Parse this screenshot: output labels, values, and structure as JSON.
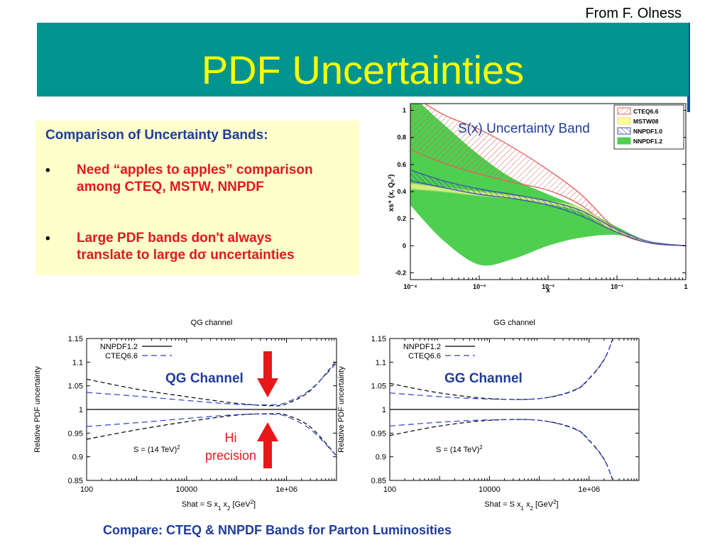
{
  "header": {
    "credit": "From F. Olness",
    "title": "PDF Uncertainties"
  },
  "comparison": {
    "heading": "Comparison of Uncertainty Bands:",
    "bullets": [
      {
        "line1": "Need “apples to apples” comparison",
        "line2": "among CTEQ, MSTW, NNPDF"
      },
      {
        "line1": "Large PDF bands don't always",
        "line2": "translate to large dσ uncertainties"
      }
    ]
  },
  "sx_plot": {
    "overlay_label": "S(x) Uncertainty Band",
    "ylabel": "xs⁺ (x, Q₀²)",
    "xlabel": "x",
    "legend": [
      "CTEQ6.6",
      "MSTW08",
      "NNPDF1.0",
      "NNPDF1.2"
    ]
  },
  "qg_plot": {
    "overlay_label": "QG Channel",
    "arrow_label_1": "Hi",
    "arrow_label_2": "precision",
    "s_label": "S = (14 TeV)",
    "s_sup": "2"
  },
  "gg_plot": {
    "overlay_label": "GG Channel",
    "s_label": "S = (14 TeV)",
    "s_sup": "2"
  },
  "footer": {
    "text": "Compare: CTEQ & NNPDF Bands  for Parton Luminosities"
  },
  "chart_data": [
    {
      "type": "area",
      "xscale": "log",
      "xlim": [
        0.0001,
        1
      ],
      "ylim": [
        -0.25,
        1.05
      ],
      "x_ticks": [
        "10⁻⁴",
        "10⁻³",
        "10⁻²",
        "10⁻¹",
        "1"
      ],
      "y_ticks": [
        "-0.2",
        "0",
        "0.2",
        "0.4",
        "0.6",
        "0.8",
        "1"
      ],
      "xlabel": "x",
      "ylabel": "xs⁺ (x, Q₀²)",
      "legend_position": "top-right",
      "x": [
        0.0001,
        0.0003,
        0.001,
        0.003,
        0.01,
        0.03,
        0.1,
        0.3,
        1
      ],
      "series": [
        {
          "name": "CTEQ6.6",
          "color": "#e06060",
          "upper": [
            1.12,
            0.97,
            0.86,
            0.73,
            0.56,
            0.38,
            0.12,
            0.03,
            0.0
          ],
          "lower": [
            0.71,
            0.61,
            0.53,
            0.47,
            0.41,
            0.3,
            0.1,
            0.02,
            0.0
          ]
        },
        {
          "name": "MSTW08",
          "color": "#e8e070",
          "upper": [
            0.46,
            0.43,
            0.4,
            0.37,
            0.33,
            0.28,
            0.12,
            0.03,
            0.0
          ],
          "lower": [
            0.42,
            0.4,
            0.37,
            0.35,
            0.31,
            0.25,
            0.1,
            0.02,
            0.0
          ]
        },
        {
          "name": "NNPDF1.0",
          "color": "#4050b0",
          "upper": [
            0.56,
            0.48,
            0.42,
            0.38,
            0.33,
            0.26,
            0.12,
            0.03,
            0.0
          ],
          "lower": [
            0.48,
            0.43,
            0.38,
            0.35,
            0.3,
            0.22,
            0.1,
            0.02,
            0.0
          ]
        },
        {
          "name": "NNPDF1.2",
          "color": "#4fcf4f",
          "upper": [
            1.12,
            0.9,
            0.67,
            0.5,
            0.38,
            0.28,
            0.14,
            0.03,
            0.0
          ],
          "lower": [
            0.3,
            0.04,
            -0.14,
            -0.1,
            0.0,
            0.06,
            0.08,
            0.02,
            0.0
          ]
        }
      ]
    },
    {
      "type": "line",
      "title": "QG channel",
      "xscale": "log",
      "xlim": [
        100,
        10000000
      ],
      "ylim": [
        0.85,
        1.15
      ],
      "x_ticks": [
        "100",
        "10000",
        "1e+06"
      ],
      "y_ticks": [
        "0.85",
        "0.9",
        "0.95",
        "1",
        "1.05",
        "1.1",
        "1.15"
      ],
      "xlabel": "Shat = S x",
      "xlabel_sub1": "1",
      "xlabel_mid": " x",
      "xlabel_sub2": "2",
      "xlabel_tail": " [GeV",
      "xlabel_sup": "2",
      "xlabel_end": "]",
      "ylabel": "Relative PDF uncertainty",
      "legend": [
        "NNPDF1.2",
        "CTEQ6.6"
      ],
      "legend_position": "top-left",
      "x": [
        100,
        1000,
        10000,
        100000,
        500000,
        1000000,
        3000000,
        10000000
      ],
      "series": [
        {
          "name": "NNPDF1.2",
          "color": "#000000",
          "dash": "6,4",
          "upper": [
            1.064,
            1.043,
            1.027,
            1.013,
            1.008,
            1.012,
            1.04,
            1.103
          ],
          "lower": [
            0.937,
            0.957,
            0.974,
            0.988,
            0.991,
            0.988,
            0.963,
            0.902
          ]
        },
        {
          "name": "CTEQ6.6",
          "color": "#2a3fd6",
          "dash": "8,5",
          "upper": [
            1.036,
            1.028,
            1.019,
            1.011,
            1.01,
            1.015,
            1.042,
            1.098
          ],
          "lower": [
            0.964,
            0.972,
            0.981,
            0.989,
            0.99,
            0.985,
            0.958,
            0.902
          ]
        }
      ]
    },
    {
      "type": "line",
      "title": "GG channel",
      "xscale": "log",
      "xlim": [
        100,
        10000000
      ],
      "ylim": [
        0.85,
        1.15
      ],
      "x_ticks": [
        "100",
        "10000",
        "1e+06"
      ],
      "y_ticks": [
        "0.85",
        "0.9",
        "0.95",
        "1",
        "1.05",
        "1.1",
        "1.15"
      ],
      "xlabel": "Shat = S x",
      "xlabel_sub1": "1",
      "xlabel_mid": " x",
      "xlabel_sub2": "2",
      "xlabel_tail": " [GeV",
      "xlabel_sup": "2",
      "xlabel_end": "]",
      "ylabel": "Relative PDF uncertainty",
      "legend": [
        "NNPDF1.2",
        "CTEQ6.6"
      ],
      "legend_position": "top-left",
      "x": [
        100,
        1000,
        10000,
        100000,
        500000,
        1000000,
        2000000,
        3000000
      ],
      "series": [
        {
          "name": "NNPDF1.2",
          "color": "#000000",
          "dash": "6,4",
          "upper": [
            1.055,
            1.035,
            1.023,
            1.023,
            1.04,
            1.065,
            1.105,
            1.15
          ],
          "lower": [
            0.945,
            0.965,
            0.977,
            0.977,
            0.96,
            0.935,
            0.895,
            0.85
          ]
        },
        {
          "name": "CTEQ6.6",
          "color": "#2a3fd6",
          "dash": "8,5",
          "upper": [
            1.035,
            1.027,
            1.022,
            1.023,
            1.041,
            1.066,
            1.106,
            1.15
          ],
          "lower": [
            0.965,
            0.973,
            0.978,
            0.977,
            0.959,
            0.934,
            0.894,
            0.85
          ]
        }
      ]
    }
  ]
}
